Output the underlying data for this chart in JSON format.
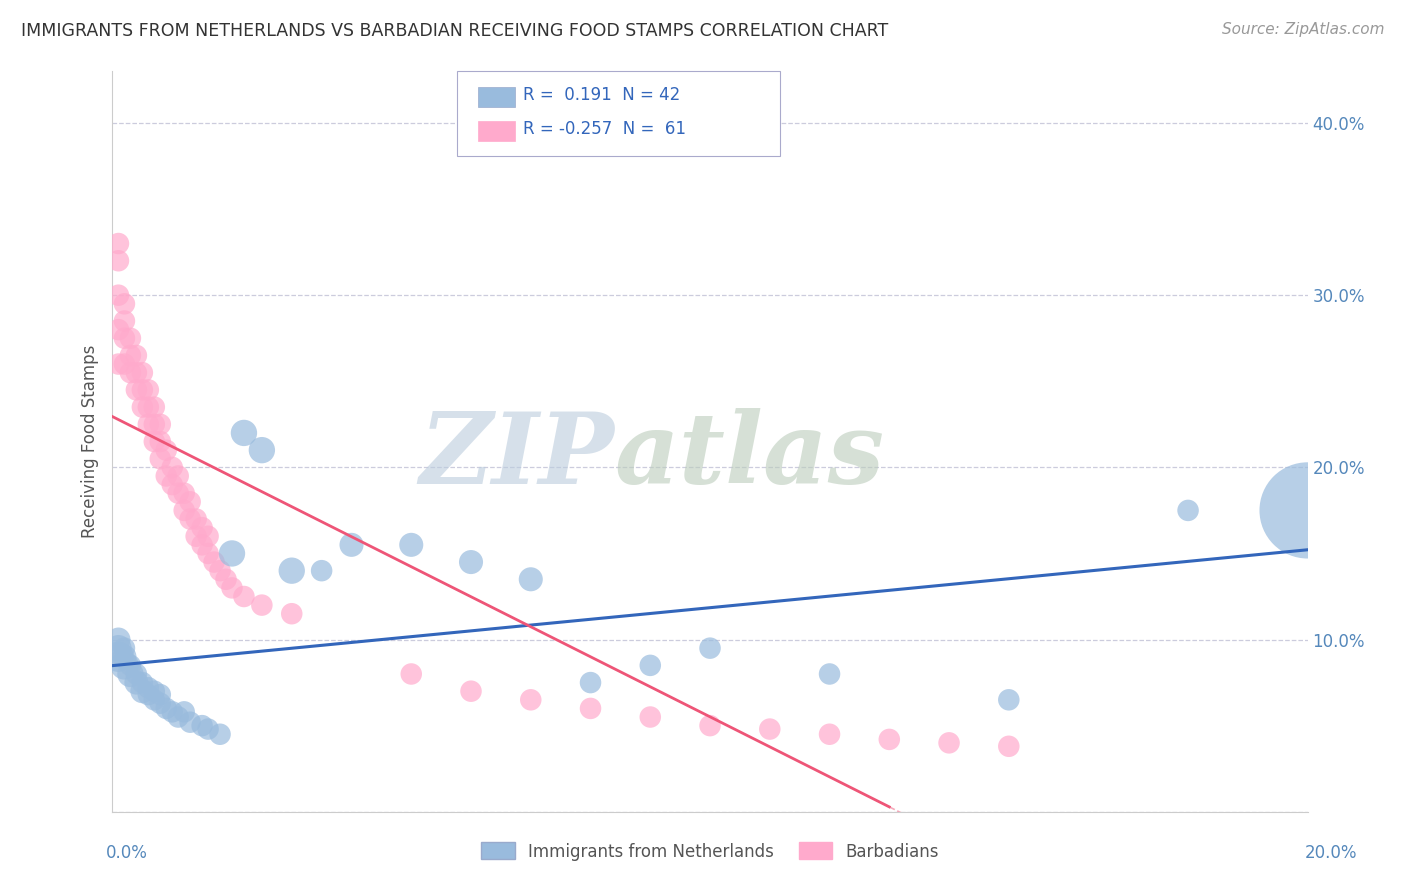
{
  "title": "IMMIGRANTS FROM NETHERLANDS VS BARBADIAN RECEIVING FOOD STAMPS CORRELATION CHART",
  "source": "Source: ZipAtlas.com",
  "ylabel": "Receiving Food Stamps",
  "y_ticks": [
    0.0,
    0.1,
    0.2,
    0.3,
    0.4
  ],
  "x_lim": [
    0.0,
    0.2
  ],
  "y_lim": [
    0.0,
    0.43
  ],
  "blue_color": "#99BBDD",
  "pink_color": "#FFAACC",
  "blue_line_color": "#3366BB",
  "pink_line_color": "#EE5577",
  "grid_color": "#CCCCDD",
  "tick_color": "#5588BB",
  "netherlands_x": [
    0.001,
    0.001,
    0.001,
    0.002,
    0.002,
    0.002,
    0.003,
    0.003,
    0.004,
    0.004,
    0.005,
    0.005,
    0.006,
    0.006,
    0.007,
    0.007,
    0.008,
    0.008,
    0.009,
    0.01,
    0.011,
    0.012,
    0.013,
    0.015,
    0.016,
    0.018,
    0.02,
    0.022,
    0.025,
    0.03,
    0.035,
    0.04,
    0.05,
    0.06,
    0.07,
    0.08,
    0.09,
    0.1,
    0.12,
    0.15,
    0.18,
    0.2
  ],
  "netherlands_y": [
    0.09,
    0.095,
    0.1,
    0.085,
    0.09,
    0.095,
    0.08,
    0.085,
    0.075,
    0.08,
    0.07,
    0.075,
    0.068,
    0.072,
    0.065,
    0.07,
    0.063,
    0.068,
    0.06,
    0.058,
    0.055,
    0.058,
    0.052,
    0.05,
    0.048,
    0.045,
    0.15,
    0.22,
    0.21,
    0.14,
    0.14,
    0.155,
    0.155,
    0.145,
    0.135,
    0.075,
    0.085,
    0.095,
    0.08,
    0.065,
    0.175,
    0.175
  ],
  "netherlands_size": [
    40,
    30,
    25,
    35,
    25,
    20,
    30,
    20,
    25,
    20,
    25,
    20,
    20,
    20,
    20,
    20,
    20,
    20,
    20,
    20,
    20,
    20,
    20,
    20,
    20,
    20,
    30,
    30,
    30,
    30,
    20,
    25,
    25,
    25,
    25,
    20,
    20,
    20,
    20,
    20,
    20,
    400
  ],
  "barbadian_x": [
    0.001,
    0.001,
    0.001,
    0.001,
    0.001,
    0.002,
    0.002,
    0.002,
    0.002,
    0.003,
    0.003,
    0.003,
    0.004,
    0.004,
    0.004,
    0.005,
    0.005,
    0.005,
    0.006,
    0.006,
    0.006,
    0.007,
    0.007,
    0.007,
    0.008,
    0.008,
    0.008,
    0.009,
    0.009,
    0.01,
    0.01,
    0.011,
    0.011,
    0.012,
    0.012,
    0.013,
    0.013,
    0.014,
    0.014,
    0.015,
    0.015,
    0.016,
    0.016,
    0.017,
    0.018,
    0.019,
    0.02,
    0.022,
    0.025,
    0.03,
    0.05,
    0.06,
    0.07,
    0.08,
    0.09,
    0.1,
    0.11,
    0.12,
    0.13,
    0.14,
    0.15
  ],
  "barbadian_y": [
    0.26,
    0.28,
    0.3,
    0.32,
    0.33,
    0.26,
    0.275,
    0.285,
    0.295,
    0.255,
    0.265,
    0.275,
    0.245,
    0.255,
    0.265,
    0.235,
    0.245,
    0.255,
    0.225,
    0.235,
    0.245,
    0.215,
    0.225,
    0.235,
    0.205,
    0.215,
    0.225,
    0.195,
    0.21,
    0.19,
    0.2,
    0.185,
    0.195,
    0.175,
    0.185,
    0.17,
    0.18,
    0.16,
    0.17,
    0.155,
    0.165,
    0.15,
    0.16,
    0.145,
    0.14,
    0.135,
    0.13,
    0.125,
    0.12,
    0.115,
    0.08,
    0.07,
    0.065,
    0.06,
    0.055,
    0.05,
    0.048,
    0.045,
    0.042,
    0.04,
    0.038
  ],
  "barbadian_size": [
    20,
    20,
    20,
    20,
    20,
    20,
    20,
    20,
    20,
    20,
    20,
    20,
    20,
    20,
    20,
    20,
    20,
    20,
    20,
    20,
    20,
    20,
    20,
    20,
    20,
    20,
    20,
    20,
    20,
    20,
    20,
    20,
    20,
    20,
    20,
    20,
    20,
    20,
    20,
    20,
    20,
    20,
    20,
    20,
    20,
    20,
    20,
    20,
    20,
    20,
    20,
    20,
    20,
    20,
    20,
    20,
    20,
    20,
    20,
    20,
    20
  ]
}
